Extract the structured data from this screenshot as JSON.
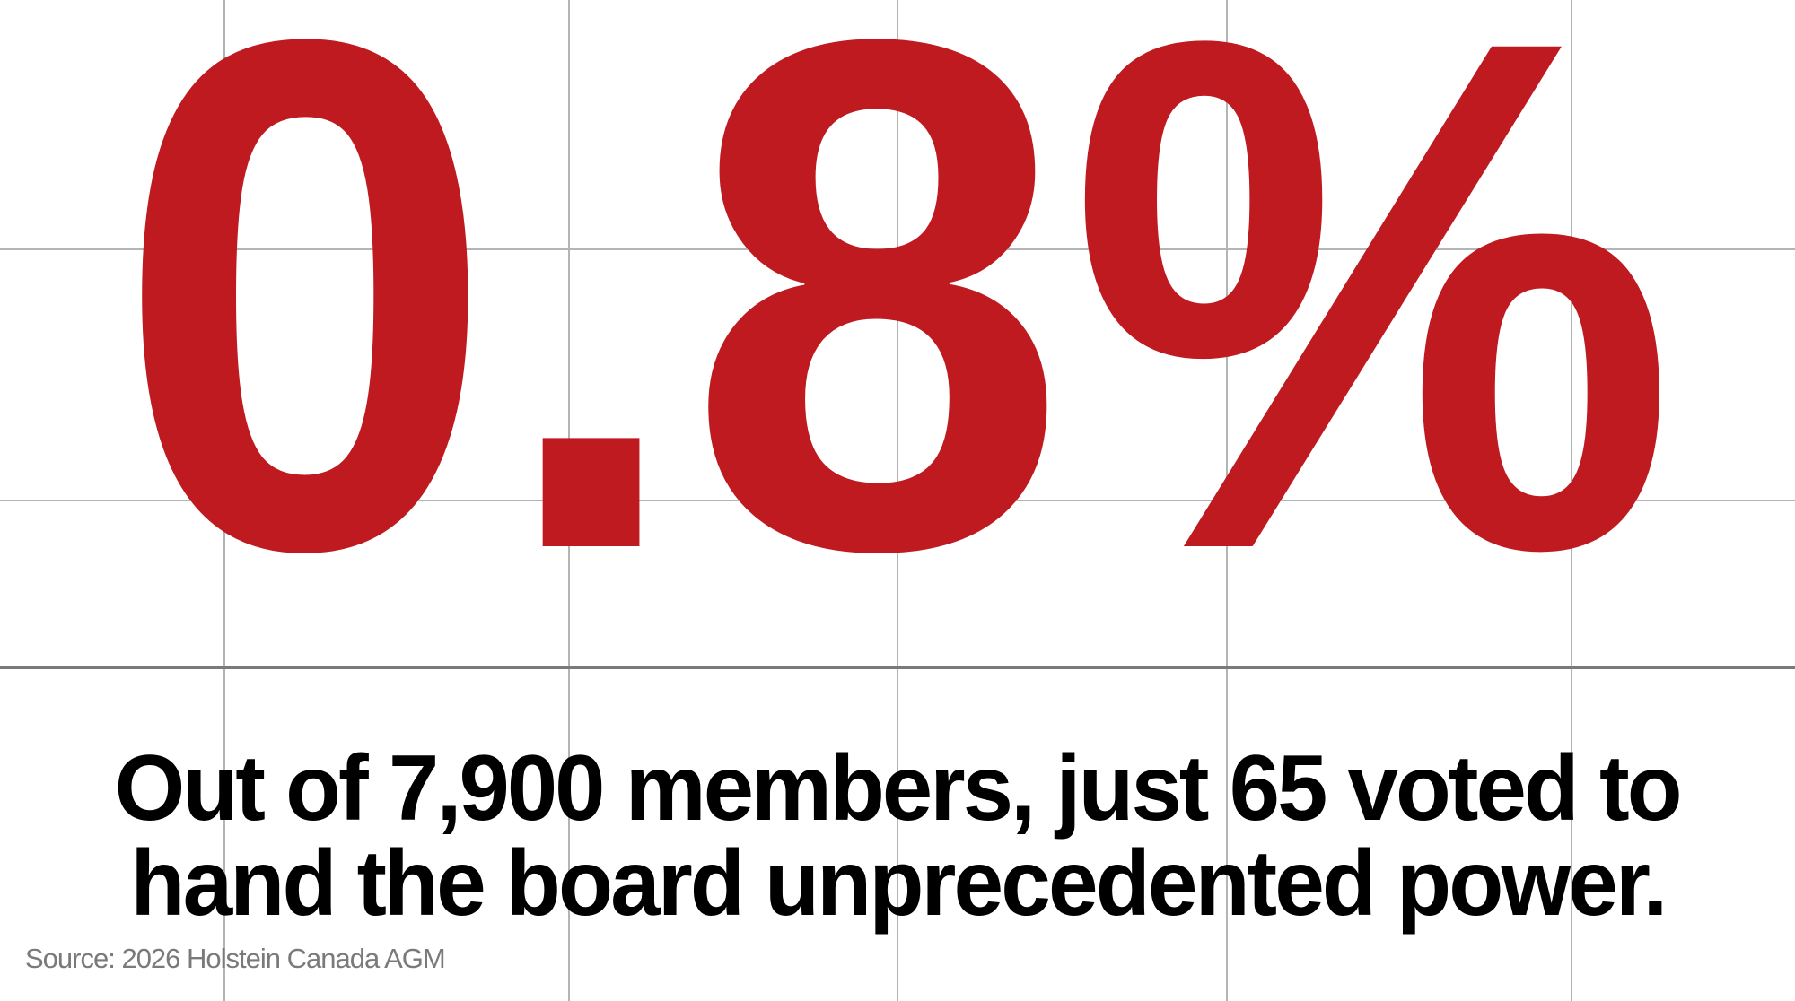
{
  "headline_stat": "0.8%",
  "caption": {
    "line1": "Out of 7,900 members, just 65 voted to",
    "line2": "hand the board unprecedented power."
  },
  "source": "Source: 2026 Holstein Canada AGM",
  "colors": {
    "stat": "#BE1A20",
    "text": "#000000",
    "source": "#7A7A7A",
    "grid": "#B4B4B4"
  }
}
